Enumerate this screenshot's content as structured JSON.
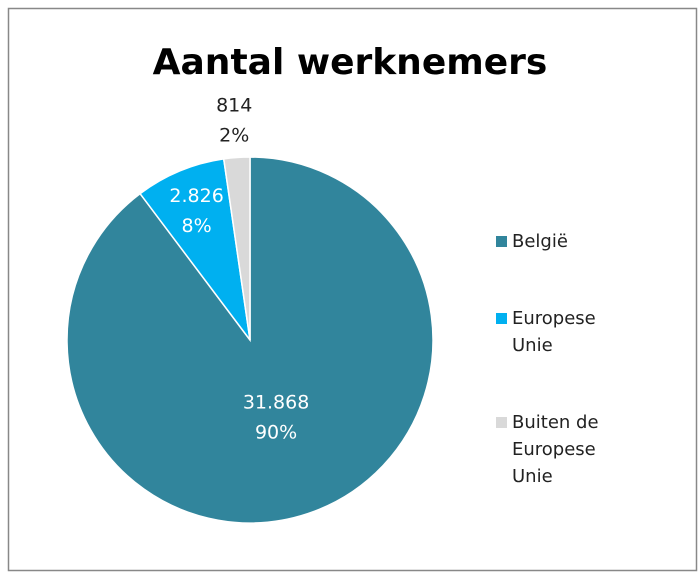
{
  "chart_data": {
    "type": "pie",
    "title": "Aantal werknemers",
    "categories": [
      "België",
      "Europese Unie",
      "Buiten de Europese Unie"
    ],
    "values": [
      31868,
      2826,
      814
    ],
    "value_labels": [
      "31.868",
      "2.826",
      "814"
    ],
    "percents": [
      90,
      8,
      2
    ],
    "percent_labels": [
      "90%",
      "8%",
      "2%"
    ],
    "colors": [
      "#31859c",
      "#00b0f0",
      "#d9d9d9"
    ],
    "legend": "right"
  }
}
